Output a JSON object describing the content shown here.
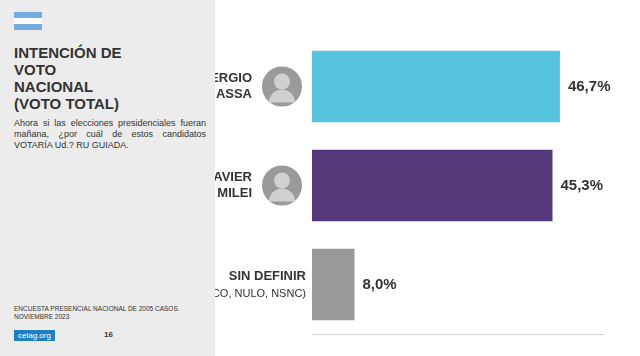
{
  "chart_data": {
    "type": "bar",
    "orientation": "horizontal",
    "title": "INTENCIÓN DE VOTO NACIONAL (VOTO TOTAL)",
    "subtitle": "Ahora si las elecciones presidenciales fueran mañana, ¿por cuál de estos candidatos VOTARÍA Ud.? RU GUIADA.",
    "annotations": [
      "ENCUESTA PRESENCIAL NACIONAL DE 2005 CASOS. NOVIEMBRE 2023",
      "celag.org",
      "16"
    ],
    "categories": [
      "SERGIO MASSA",
      "JAVIER MILEI",
      "SIN DEFINIR (BLANCO, NULO, NSNC)"
    ],
    "values": [
      46.7,
      45.3,
      8.0
    ],
    "value_labels": [
      "46,7%",
      "45,3%",
      "8,0%"
    ],
    "colors": [
      "#57c4df",
      "#55397a",
      "#999999"
    ],
    "xlim": [
      0,
      55
    ],
    "grid": false,
    "data_labels": true,
    "tick_labels": false
  }
}
